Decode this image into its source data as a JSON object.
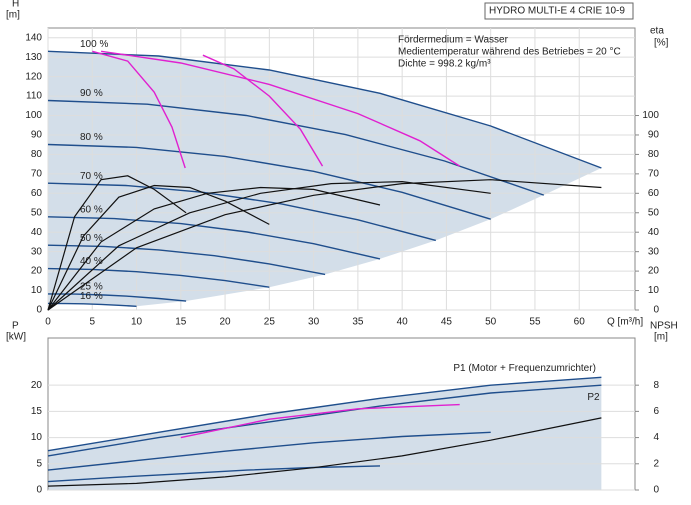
{
  "chart_data": [
    {
      "type": "line",
      "title": "HYDRO MULTI-E 4 CRIE 10-9",
      "annotations": [
        "Fördermedium = Wasser",
        "Medientemperatur während des Betriebes = 20 °C",
        "Dichte = 998.2 kg/m³"
      ],
      "y_label": "H",
      "y_unit": "[m]",
      "y2_label": "eta",
      "y2_unit": "[%]",
      "x_label": "Q [m³/h]",
      "xlim": [
        0,
        66.3
      ],
      "xticks": [
        0,
        5,
        10,
        15,
        20,
        25,
        30,
        35,
        40,
        45,
        50,
        55,
        60
      ],
      "ylim": [
        0,
        145
      ],
      "yticks": [
        0,
        10,
        20,
        30,
        40,
        50,
        60,
        70,
        80,
        90,
        100,
        110,
        120,
        130,
        140
      ],
      "y2lim": [
        0,
        145
      ],
      "y2ticks": [
        0,
        10,
        20,
        30,
        40,
        50,
        60,
        70,
        80,
        90,
        100
      ],
      "grid": true,
      "series": [
        {
          "name": "100 %",
          "color": "#1f4e8c",
          "x": [
            0,
            12.5,
            25,
            37.5,
            50,
            62.5
          ],
          "values": [
            133,
            130.6,
            123.4,
            111.4,
            94.6,
            73
          ]
        },
        {
          "name": "90 %",
          "color": "#1f4e8c",
          "x": [
            0,
            11.2,
            22.4,
            33.6,
            44.8,
            56
          ],
          "values": [
            107.7,
            105.8,
            100,
            90.2,
            76.6,
            59.1
          ]
        },
        {
          "name": "80 %",
          "color": "#1f4e8c",
          "x": [
            0,
            10,
            20,
            30,
            40,
            50
          ],
          "values": [
            85.1,
            83.6,
            79,
            71.3,
            60.5,
            46.7
          ]
        },
        {
          "name": "70 %",
          "color": "#1f4e8c",
          "x": [
            0,
            8.8,
            17.5,
            26.3,
            35,
            43.8
          ],
          "values": [
            65.2,
            64,
            60.5,
            54.6,
            46.4,
            35.8
          ]
        },
        {
          "name": "60 %",
          "color": "#1f4e8c",
          "x": [
            0,
            7.5,
            15,
            22.5,
            30,
            37.5
          ],
          "values": [
            47.9,
            47,
            44.4,
            40.1,
            34.1,
            26.3
          ]
        },
        {
          "name": "50 %",
          "color": "#1f4e8c",
          "x": [
            0,
            6.3,
            12.5,
            18.8,
            25,
            31.3
          ],
          "values": [
            33.3,
            32.7,
            30.9,
            27.9,
            23.7,
            18.3
          ]
        },
        {
          "name": "40 %",
          "color": "#1f4e8c",
          "x": [
            0,
            5,
            10,
            15,
            20,
            25
          ],
          "values": [
            21.3,
            20.9,
            19.7,
            17.8,
            15.1,
            11.7
          ]
        },
        {
          "name": "25 %",
          "color": "#1f4e8c",
          "x": [
            0,
            3.1,
            6.3,
            9.4,
            12.5,
            15.6
          ],
          "values": [
            8.3,
            8.2,
            7.7,
            7,
            5.9,
            4.6
          ]
        },
        {
          "name": "16 %",
          "color": "#1f4e8c",
          "x": [
            0,
            2,
            4,
            6,
            8,
            10
          ],
          "values": [
            3.4,
            3.3,
            3.2,
            2.9,
            2.4,
            1.9
          ]
        },
        {
          "color": "#e020d0",
          "x": [
            5,
            9,
            12,
            14,
            15.5
          ],
          "values": [
            133,
            128,
            112,
            94,
            73
          ]
        },
        {
          "color": "#e020d0",
          "x": [
            17.5,
            21,
            25,
            28.5,
            31
          ],
          "values": [
            131,
            124,
            110,
            93,
            74
          ]
        },
        {
          "color": "#e020d0",
          "x": [
            6,
            15,
            25,
            35,
            42,
            46.5
          ],
          "values": [
            133,
            127,
            116,
            101,
            87,
            74
          ]
        },
        {
          "color": "#111111",
          "axis": "y2",
          "x": [
            0,
            10,
            20,
            30,
            40,
            50,
            62.5
          ],
          "values": [
            0,
            32,
            49,
            59,
            65,
            67,
            63
          ]
        },
        {
          "color": "#111111",
          "axis": "y2",
          "x": [
            0,
            8,
            16,
            24,
            32,
            40,
            50
          ],
          "values": [
            0,
            33,
            50,
            60,
            65,
            66,
            60
          ]
        },
        {
          "color": "#111111",
          "axis": "y2",
          "x": [
            0,
            6,
            12,
            18,
            24,
            30,
            37.5
          ],
          "values": [
            0,
            35,
            52,
            60,
            63,
            62,
            54
          ]
        },
        {
          "color": "#111111",
          "axis": "y2",
          "x": [
            0,
            4,
            8,
            12,
            16,
            20,
            25
          ],
          "values": [
            0,
            38,
            58,
            64,
            63,
            56,
            44
          ]
        },
        {
          "color": "#111111",
          "axis": "y2",
          "x": [
            0,
            3,
            6,
            9,
            12,
            15.6
          ],
          "values": [
            0,
            48,
            67,
            69,
            62,
            50
          ]
        }
      ]
    },
    {
      "type": "line",
      "y_label": "P",
      "y_unit": "[kW]",
      "y2_label": "NPSH",
      "y2_unit": "[m]",
      "xlim": [
        0,
        66.3
      ],
      "ylim": [
        0,
        29
      ],
      "yticks": [
        0,
        5,
        10,
        15,
        20
      ],
      "y2lim": [
        0,
        11.6
      ],
      "y2ticks": [
        0,
        2,
        4,
        6,
        8
      ],
      "grid": true,
      "series": [
        {
          "name": "P1 (Motor + Frequenzumrichter)",
          "color": "#1f4e8c",
          "x": [
            0,
            12.5,
            25,
            37.5,
            50,
            62.5
          ],
          "values": [
            7.5,
            11,
            14.5,
            17.5,
            20,
            21.5
          ]
        },
        {
          "name": "P2",
          "color": "#1f4e8c",
          "x": [
            0,
            12.5,
            25,
            37.5,
            50,
            62.5
          ],
          "values": [
            6.5,
            10,
            13,
            16,
            18.5,
            20
          ]
        },
        {
          "color": "#1f4e8c",
          "x": [
            0,
            10,
            20,
            30,
            40,
            50
          ],
          "values": [
            3.8,
            5.6,
            7.4,
            9,
            10.2,
            11
          ]
        },
        {
          "color": "#1f4e8c",
          "x": [
            0,
            7.5,
            15,
            22.5,
            30,
            37.5
          ],
          "values": [
            1.6,
            2.4,
            3.1,
            3.8,
            4.3,
            4.6
          ]
        },
        {
          "color": "#e020d0",
          "x": [
            15,
            25,
            35,
            46.5
          ],
          "values": [
            10,
            13.5,
            15.5,
            16.3
          ]
        },
        {
          "color": "#111111",
          "axis": "y2",
          "x": [
            0,
            10,
            20,
            30,
            40,
            50,
            62.5
          ],
          "values": [
            0.3,
            0.5,
            1,
            1.7,
            2.6,
            3.8,
            5.5
          ]
        }
      ]
    }
  ]
}
